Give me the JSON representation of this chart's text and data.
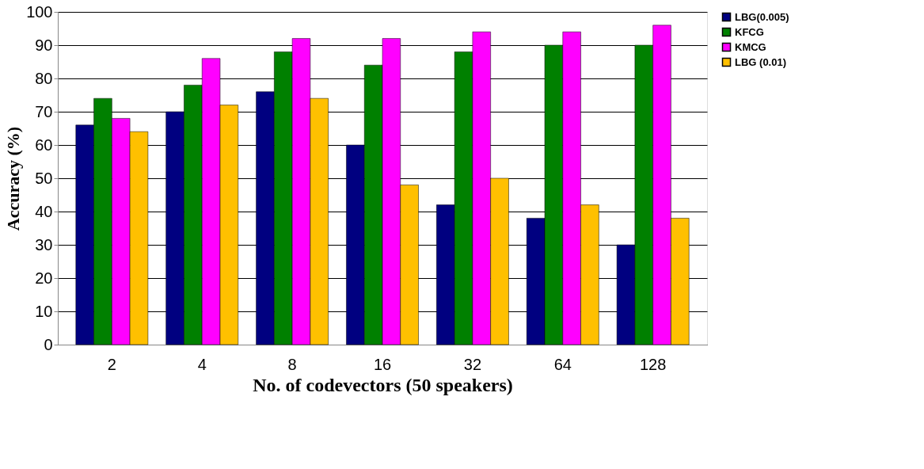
{
  "chart_data": {
    "type": "bar",
    "xlabel": "No. of codevectors (50 speakers)",
    "ylabel": "Accuracy (%)",
    "categories": [
      "2",
      "4",
      "8",
      "16",
      "32",
      "64",
      "128"
    ],
    "series": [
      {
        "name": "LBG(0.005)",
        "color": "#000080",
        "values": [
          66,
          70,
          76,
          60,
          42,
          38,
          30
        ]
      },
      {
        "name": "KFCG",
        "color": "#008000",
        "values": [
          74,
          78,
          88,
          84,
          88,
          90,
          90
        ]
      },
      {
        "name": "KMCG",
        "color": "#ff00ff",
        "values": [
          68,
          86,
          92,
          92,
          94,
          94,
          96
        ]
      },
      {
        "name": "LBG (0.01)",
        "color": "#ffc000",
        "values": [
          64,
          72,
          74,
          48,
          50,
          42,
          38
        ]
      }
    ],
    "ylim": [
      0,
      100
    ],
    "yticks": [
      0,
      10,
      20,
      30,
      40,
      50,
      60,
      70,
      80,
      90,
      100
    ],
    "grid": "y",
    "legend": "right"
  }
}
